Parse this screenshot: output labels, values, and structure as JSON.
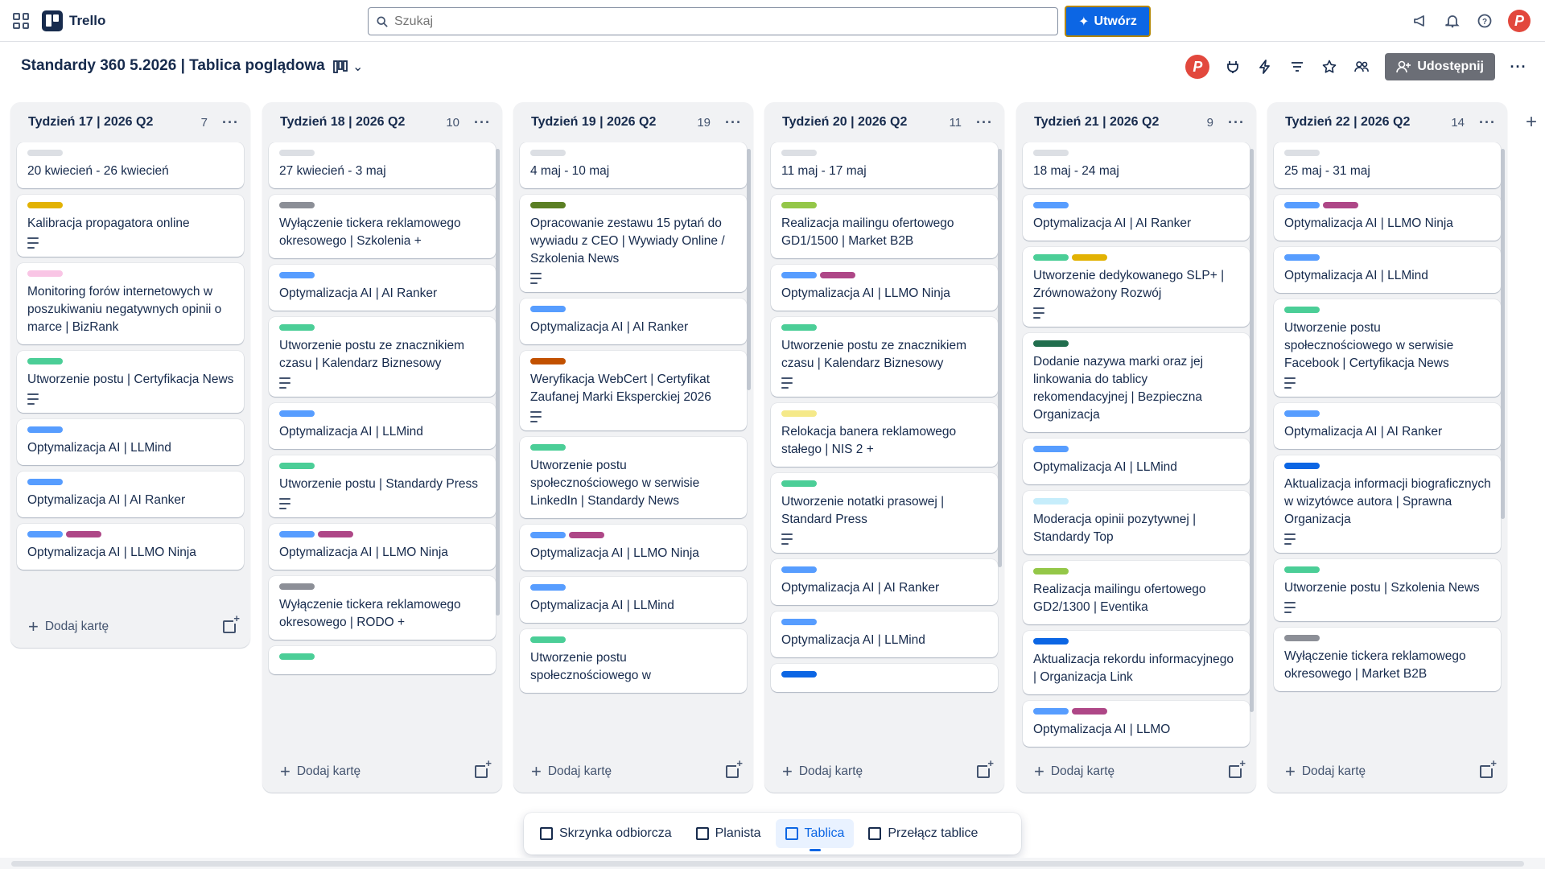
{
  "nav": {
    "app_name": "Trello",
    "search_placeholder": "Szukaj",
    "create_label": "Utwórz",
    "avatar_letter": "P"
  },
  "board": {
    "title": "Standardy 360 5.2026 | Tablica poglądowa",
    "share_label": "Udostępnij",
    "member_letter": "P",
    "add_card_label": "Dodaj kartę"
  },
  "colors": {
    "blue": "#579dff",
    "purple": "#ae4787",
    "green": "#4bce97",
    "gray": "#8c8f97",
    "orange": "#e2b203",
    "pink": "#f9c5e5",
    "lime": "#94c748",
    "yellow": "#e2d75c",
    "teal": "#216e4e",
    "sky": "#c6edfb",
    "navy": "#0c66e4",
    "olive": "#5b7f24",
    "rust": "#c25100",
    "light": "#dcdfe4",
    "paleyellow": "#f5e989"
  },
  "lists": [
    {
      "title": "Tydzień 17 | 2026 Q2",
      "count": "7",
      "cards": [
        {
          "title": "20 kwiecień - 26 kwiecień",
          "labels": [
            "light"
          ],
          "desc": false
        },
        {
          "title": "Kalibracja propagatora online",
          "labels": [
            "orange"
          ],
          "desc": true
        },
        {
          "title": "Monitoring forów internetowych w poszukiwaniu negatywnych opinii o marce | BizRank",
          "labels": [
            "pink"
          ],
          "desc": false
        },
        {
          "title": "Utworzenie postu | Certyfikacja News",
          "labels": [
            "green"
          ],
          "desc": true
        },
        {
          "title": "Optymalizacja AI | LLMind",
          "labels": [
            "blue"
          ],
          "desc": false
        },
        {
          "title": "Optymalizacja AI | AI Ranker",
          "labels": [
            "blue"
          ],
          "desc": false
        },
        {
          "title": "Optymalizacja AI | LLMO Ninja",
          "labels": [
            "blue",
            "purple"
          ],
          "desc": false
        }
      ]
    },
    {
      "title": "Tydzień 18 | 2026 Q2",
      "count": "10",
      "cards": [
        {
          "title": "27 kwiecień - 3 maj",
          "labels": [
            "light"
          ],
          "desc": false
        },
        {
          "title": "Wyłączenie tickera reklamowego okresowego | Szkolenia +",
          "labels": [
            "gray"
          ],
          "desc": false
        },
        {
          "title": "Optymalizacja AI | AI Ranker",
          "labels": [
            "blue"
          ],
          "desc": false
        },
        {
          "title": "Utworzenie postu ze znacznikiem czasu | Kalendarz Biznesowy",
          "labels": [
            "green"
          ],
          "desc": true
        },
        {
          "title": "Optymalizacja AI | LLMind",
          "labels": [
            "blue"
          ],
          "desc": false
        },
        {
          "title": "Utworzenie postu | Standardy Press",
          "labels": [
            "green"
          ],
          "desc": true
        },
        {
          "title": "Optymalizacja AI | LLMO Ninja",
          "labels": [
            "blue",
            "purple"
          ],
          "desc": false
        },
        {
          "title": "Wyłączenie tickera reklamowego okresowego | RODO +",
          "labels": [
            "gray"
          ],
          "desc": false
        },
        {
          "title": "",
          "labels": [
            "green"
          ],
          "desc": false
        }
      ]
    },
    {
      "title": "Tydzień 19 | 2026 Q2",
      "count": "19",
      "cards": [
        {
          "title": "4 maj - 10 maj",
          "labels": [
            "light"
          ],
          "desc": false
        },
        {
          "title": "Opracowanie zestawu 15 pytań do wywiadu z CEO | Wywiady Online / Szkolenia News",
          "labels": [
            "olive"
          ],
          "desc": true
        },
        {
          "title": "Optymalizacja AI | AI Ranker",
          "labels": [
            "blue"
          ],
          "desc": false
        },
        {
          "title": "Weryfikacja WebCert | Certyfikat Zaufanej Marki Eksperckiej 2026",
          "labels": [
            "rust"
          ],
          "desc": true
        },
        {
          "title": "Utworzenie postu społecznościowego w serwisie LinkedIn | Standardy News",
          "labels": [
            "green"
          ],
          "desc": false
        },
        {
          "title": "Optymalizacja AI | LLMO Ninja",
          "labels": [
            "blue",
            "purple"
          ],
          "desc": false
        },
        {
          "title": "Optymalizacja AI | LLMind",
          "labels": [
            "blue"
          ],
          "desc": false
        },
        {
          "title": "Utworzenie postu społecznościowego w",
          "labels": [
            "green"
          ],
          "desc": false
        }
      ]
    },
    {
      "title": "Tydzień 20 | 2026 Q2",
      "count": "11",
      "cards": [
        {
          "title": "11 maj - 17 maj",
          "labels": [
            "light"
          ],
          "desc": false
        },
        {
          "title": "Realizacja mailingu ofertowego GD1/1500 | Market B2B",
          "labels": [
            "lime"
          ],
          "desc": false
        },
        {
          "title": "Optymalizacja AI | LLMO Ninja",
          "labels": [
            "blue",
            "purple"
          ],
          "desc": false
        },
        {
          "title": "Utworzenie postu ze znacznikiem czasu | Kalendarz Biznesowy",
          "labels": [
            "green"
          ],
          "desc": true
        },
        {
          "title": "Relokacja banera reklamowego stałego | NIS 2 +",
          "labels": [
            "paleyellow"
          ],
          "desc": false
        },
        {
          "title": "Utworzenie notatki prasowej | Standard Press",
          "labels": [
            "green"
          ],
          "desc": true
        },
        {
          "title": "Optymalizacja AI | AI Ranker",
          "labels": [
            "blue"
          ],
          "desc": false
        },
        {
          "title": "Optymalizacja AI | LLMind",
          "labels": [
            "blue"
          ],
          "desc": false
        },
        {
          "title": "",
          "labels": [
            "navy"
          ],
          "desc": false
        }
      ]
    },
    {
      "title": "Tydzień 21 | 2026 Q2",
      "count": "9",
      "cards": [
        {
          "title": "18 maj - 24 maj",
          "labels": [
            "light"
          ],
          "desc": false
        },
        {
          "title": "Optymalizacja AI | AI Ranker",
          "labels": [
            "blue"
          ],
          "desc": false
        },
        {
          "title": "Utworzenie dedykowanego SLP+ | Zrównoważony Rozwój",
          "labels": [
            "green",
            "orange"
          ],
          "desc": true
        },
        {
          "title": "Dodanie nazywa marki oraz jej linkowania do tablicy rekomendacyjnej | Bezpieczna Organizacja",
          "labels": [
            "teal"
          ],
          "desc": false
        },
        {
          "title": "Optymalizacja AI | LLMind",
          "labels": [
            "blue"
          ],
          "desc": false
        },
        {
          "title": "Moderacja opinii pozytywnej | Standardy Top",
          "labels": [
            "sky"
          ],
          "desc": false
        },
        {
          "title": "Realizacja mailingu ofertowego GD2/1300 | Eventika",
          "labels": [
            "lime"
          ],
          "desc": false
        },
        {
          "title": "Aktualizacja rekordu informacyjnego | Organizacja Link",
          "labels": [
            "navy"
          ],
          "desc": false
        },
        {
          "title": "Optymalizacja AI | LLMO",
          "labels": [
            "blue",
            "purple"
          ],
          "desc": false
        }
      ]
    },
    {
      "title": "Tydzień 22 | 2026 Q2",
      "count": "14",
      "cards": [
        {
          "title": "25 maj - 31 maj",
          "labels": [
            "light"
          ],
          "desc": false
        },
        {
          "title": "Optymalizacja AI | LLMO Ninja",
          "labels": [
            "blue",
            "purple"
          ],
          "desc": false
        },
        {
          "title": "Optymalizacja AI | LLMind",
          "labels": [
            "blue"
          ],
          "desc": false
        },
        {
          "title": "Utworzenie postu społecznościowego w serwisie Facebook | Certyfikacja News",
          "labels": [
            "green"
          ],
          "desc": true
        },
        {
          "title": "Optymalizacja AI | AI Ranker",
          "labels": [
            "blue"
          ],
          "desc": false
        },
        {
          "title": "Aktualizacja informacji biograficznych w wizytówce autora | Sprawna Organizacja",
          "labels": [
            "navy"
          ],
          "desc": true
        },
        {
          "title": "Utworzenie postu | Szkolenia News",
          "labels": [
            "green"
          ],
          "desc": true
        },
        {
          "title": "Wyłączenie tickera reklamowego okresowego | Market B2B",
          "labels": [
            "gray"
          ],
          "desc": false
        }
      ]
    }
  ],
  "switcher": {
    "inbox": "Skrzynka odbiorcza",
    "planner": "Planista",
    "board": "Tablica",
    "switch": "Przełącz tablice"
  }
}
